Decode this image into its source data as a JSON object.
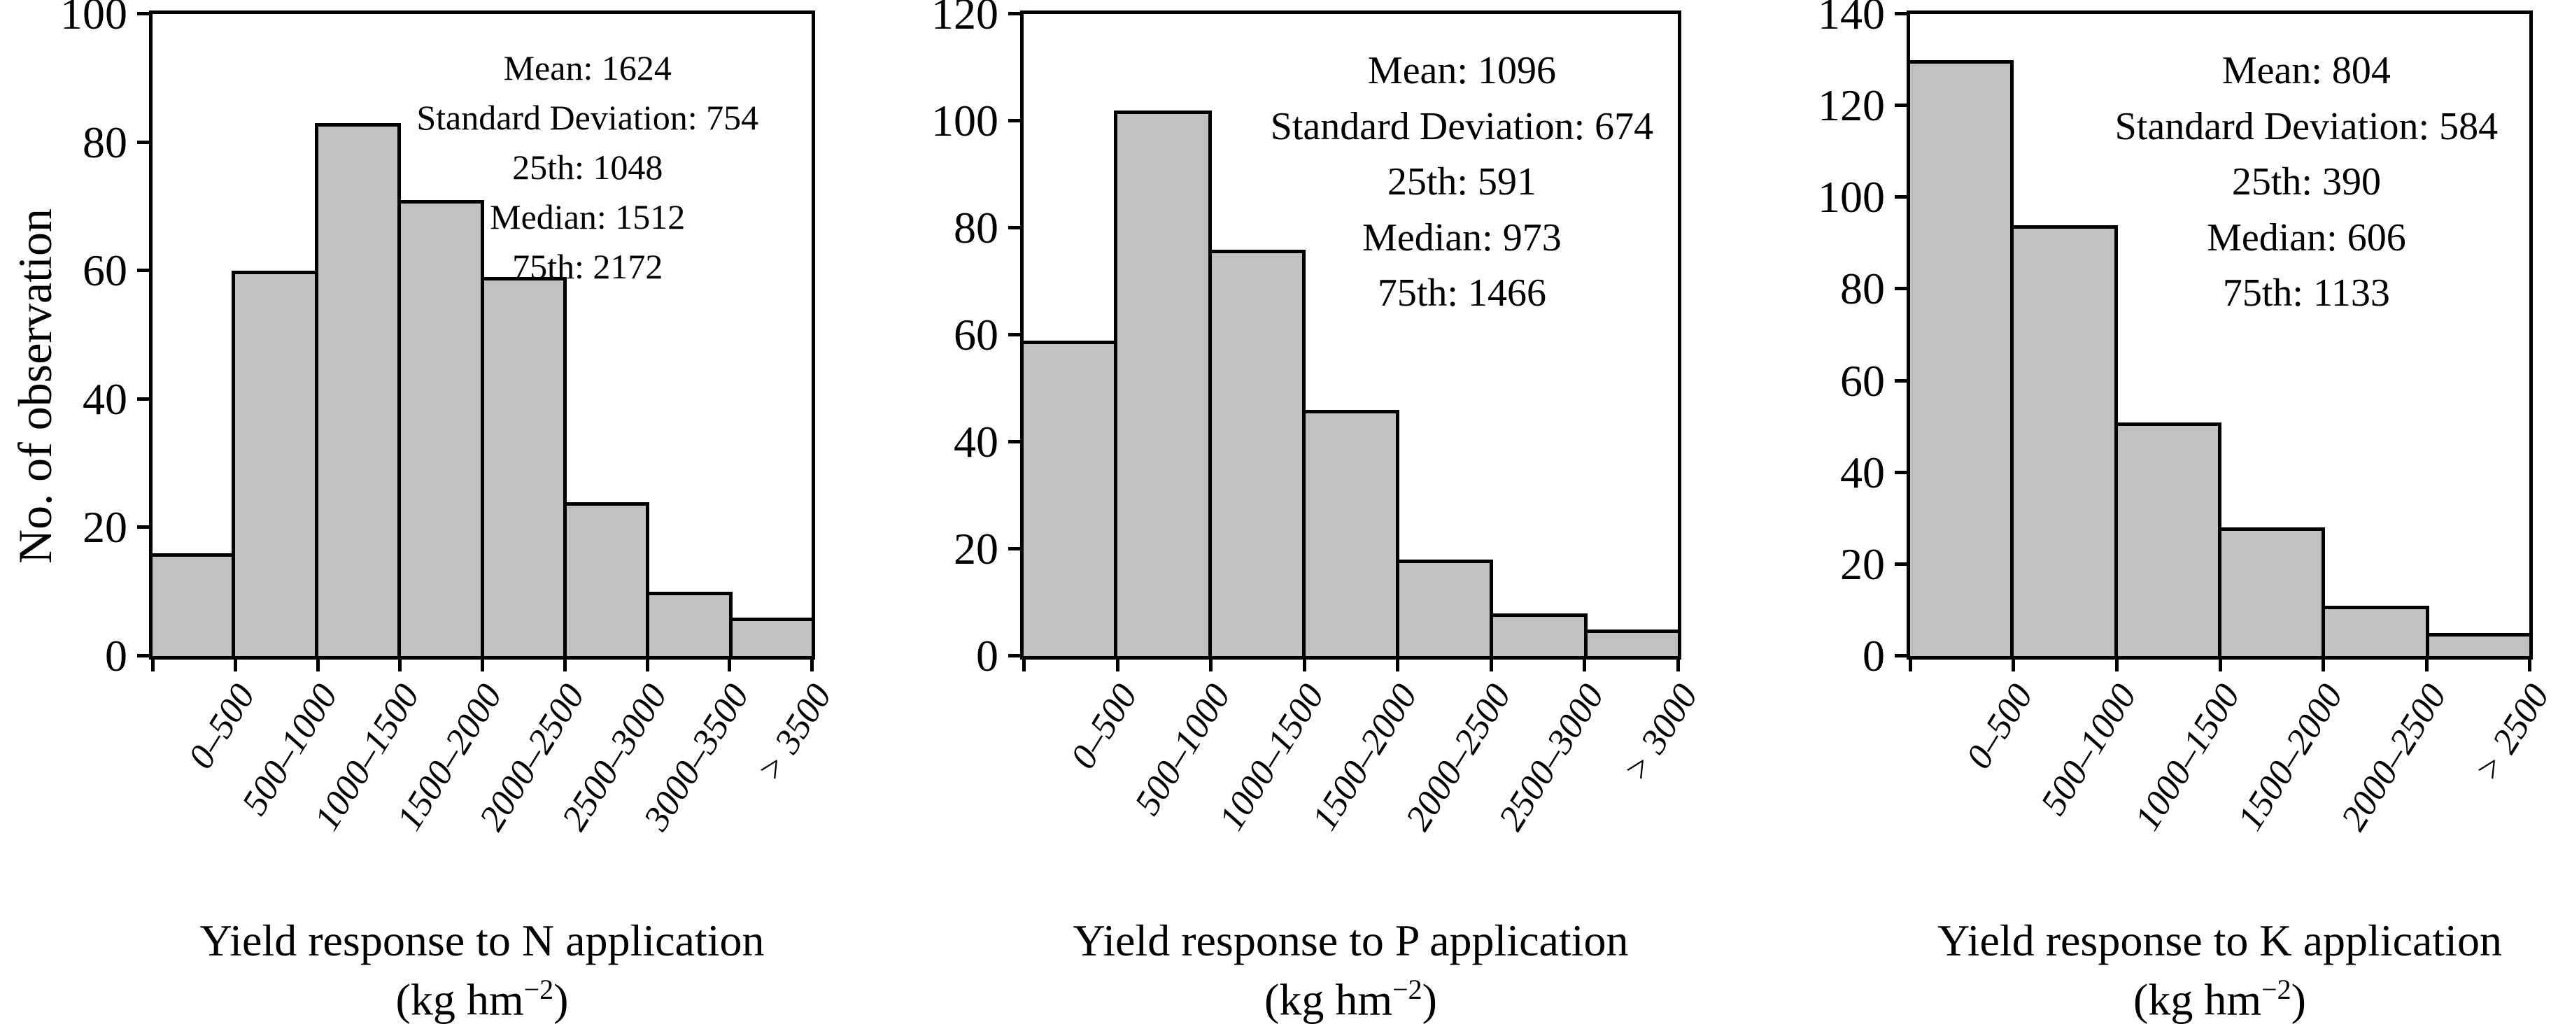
{
  "figure": {
    "ylabel": "No. of observation",
    "colors": {
      "bar_fill": "#c1c1c1",
      "axis": "#000000",
      "text": "#000000",
      "background": "#ffffff"
    }
  },
  "chart_data": [
    {
      "type": "bar",
      "title": "Yield response to N application",
      "unit_prefix": "(kg hm",
      "unit_exponent": "−2",
      "unit_suffix": ")",
      "ylabel": "No. of observation",
      "ylim": [
        0,
        100
      ],
      "ytick_step": 20,
      "grid": false,
      "categories": [
        "0–500",
        "500–1000",
        "1000–1500",
        "1500–2000",
        "2000–2500",
        "2500–3000",
        "3000–3500",
        "> 3500"
      ],
      "values": [
        16,
        60,
        83,
        71,
        59,
        24,
        10,
        6
      ],
      "annotations": [
        "Mean: 1624",
        "Standard Deviation: 754",
        "25th: 1048",
        "Median: 1512",
        "75th: 2172"
      ],
      "annotation_center_pct": 66,
      "stats_font_px": 50
    },
    {
      "type": "bar",
      "title": "Yield response to P application",
      "unit_prefix": "(kg hm",
      "unit_exponent": "−2",
      "unit_suffix": ")",
      "ylabel": "",
      "ylim": [
        0,
        120
      ],
      "ytick_step": 20,
      "grid": false,
      "categories": [
        "0–500",
        "500–1000",
        "1000–1500",
        "1500–2000",
        "2000–2500",
        "2500–3000",
        "> 3000"
      ],
      "values": [
        59,
        102,
        76,
        46,
        18,
        8,
        5
      ],
      "annotations": [
        "Mean: 1096",
        "Standard Deviation: 674",
        "25th: 591",
        "Median: 973",
        "75th: 1466"
      ],
      "annotation_center_pct": 67,
      "stats_font_px": 56
    },
    {
      "type": "bar",
      "title": "Yield response to K application",
      "unit_prefix": "(kg hm",
      "unit_exponent": "−2",
      "unit_suffix": ")",
      "ylabel": "",
      "ylim": [
        0,
        140
      ],
      "ytick_step": 20,
      "grid": false,
      "categories": [
        "0–500",
        "500–1000",
        "1000–1500",
        "1500–2000",
        "2000–2500",
        "> 2500"
      ],
      "values": [
        130,
        94,
        51,
        28,
        11,
        5
      ],
      "annotations": [
        "Mean: 804",
        "Standard Deviation: 584",
        "25th: 390",
        "Median: 606",
        "75th: 1133"
      ],
      "annotation_center_pct": 64,
      "stats_font_px": 56
    }
  ]
}
